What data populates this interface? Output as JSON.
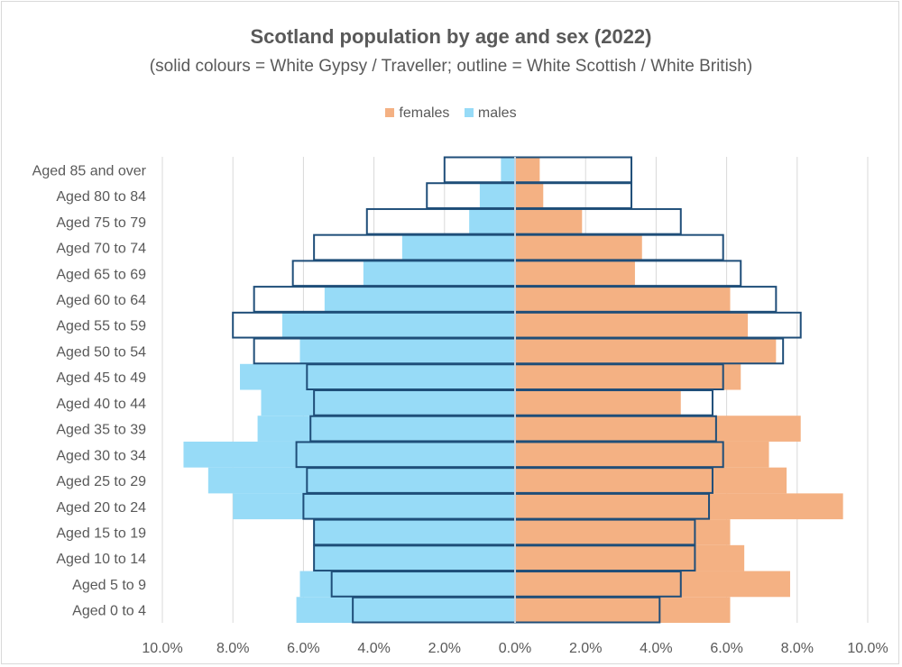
{
  "chart_data": {
    "type": "bar",
    "orientation": "horizontal",
    "layout": "population-pyramid",
    "title": "Scotland population by age and sex (2022)",
    "subtitle": "(solid colours = White Gypsy / Traveller; outline = White Scottish / White British)",
    "legend": {
      "placement": "top",
      "items": [
        {
          "label": "females",
          "color": "#F4B183"
        },
        {
          "label": "males",
          "color": "#97DBF7"
        }
      ]
    },
    "categories": [
      "Aged 0 to 4",
      "Aged 5 to 9",
      "Aged 10 to 14",
      "Aged 15 to 19",
      "Aged 20 to 24",
      "Aged 25 to 29",
      "Aged 30 to 34",
      "Aged 35 to 39",
      "Aged 40 to 44",
      "Aged 45 to 49",
      "Aged 50 to 54",
      "Aged 55 to 59",
      "Aged 60 to 64",
      "Aged 65 to 69",
      "Aged 70 to 74",
      "Aged 75 to 79",
      "Aged 80 to 84",
      "Aged 85 and over"
    ],
    "series": [
      {
        "name": "males",
        "group": "White Gypsy / Traveller",
        "style": "solid",
        "color": "#97DBF7",
        "values": [
          6.2,
          6.1,
          5.7,
          5.7,
          8.0,
          8.7,
          9.4,
          7.3,
          7.2,
          7.8,
          6.1,
          6.6,
          5.4,
          4.3,
          3.2,
          1.3,
          1.0,
          0.4
        ]
      },
      {
        "name": "females",
        "group": "White Gypsy / Traveller",
        "style": "solid",
        "color": "#F4B183",
        "values": [
          6.1,
          7.8,
          6.5,
          6.1,
          9.3,
          7.7,
          7.2,
          8.1,
          4.7,
          6.4,
          7.4,
          6.6,
          6.1,
          3.4,
          3.6,
          1.9,
          0.8,
          0.7
        ]
      },
      {
        "name": "males",
        "group": "White Scottish / White British",
        "style": "outline",
        "color": "#1F4E79",
        "values": [
          4.6,
          5.2,
          5.7,
          5.7,
          6.0,
          5.9,
          6.2,
          5.8,
          5.7,
          5.9,
          7.4,
          8.0,
          7.4,
          6.3,
          5.7,
          4.2,
          2.5,
          2.0
        ]
      },
      {
        "name": "females",
        "group": "White Scottish / White British",
        "style": "outline",
        "color": "#1F4E79",
        "values": [
          4.1,
          4.7,
          5.1,
          5.1,
          5.5,
          5.6,
          5.9,
          5.7,
          5.6,
          5.9,
          7.6,
          8.1,
          7.4,
          6.4,
          5.9,
          4.7,
          3.3,
          3.3
        ]
      }
    ],
    "xlim": [
      -10,
      10
    ],
    "x_ticks": [
      {
        "value": -10,
        "label": "10.0%"
      },
      {
        "value": -8,
        "label": "8.0%"
      },
      {
        "value": -6,
        "label": "6.0%"
      },
      {
        "value": -4,
        "label": "4.0%"
      },
      {
        "value": -2,
        "label": "2.0%"
      },
      {
        "value": 0,
        "label": "0.0%"
      },
      {
        "value": 2,
        "label": "2.0%"
      },
      {
        "value": 4,
        "label": "4.0%"
      },
      {
        "value": 6,
        "label": "6.0%"
      },
      {
        "value": 8,
        "label": "8.0%"
      },
      {
        "value": 10,
        "label": "10.0%"
      }
    ],
    "grid": "vertical",
    "outline_color": "#1F4E79",
    "gridline_color": "#D9D9D9"
  }
}
